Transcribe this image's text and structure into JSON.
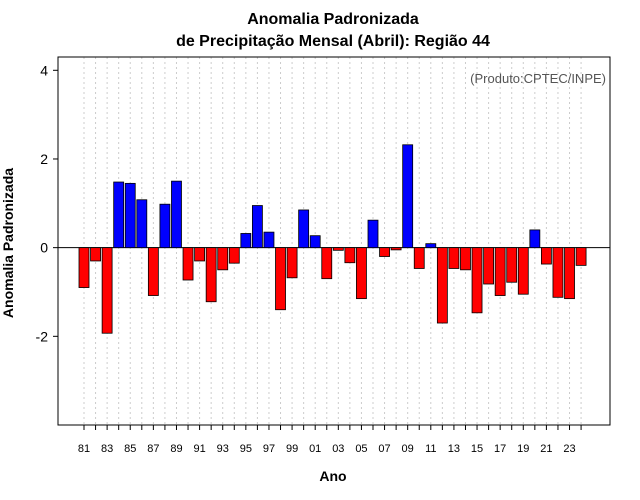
{
  "chart_data": {
    "type": "bar",
    "title_line1": "Anomalia Padronizada",
    "title_line2": "de Precipitação Mensal (Abril): Região 44",
    "xlabel": "Ano",
    "ylabel": "Anomalia Padronizada",
    "credit": "(Produto:CPTEC/INPE)",
    "ylim": [
      -4,
      4.3
    ],
    "yticks": [
      -2,
      0,
      2,
      4
    ],
    "ytick_labels": [
      "-2",
      "0",
      "2",
      "4"
    ],
    "grid": true,
    "years": [
      "81",
      "82",
      "83",
      "84",
      "85",
      "86",
      "87",
      "88",
      "89",
      "90",
      "91",
      "92",
      "93",
      "94",
      "95",
      "96",
      "97",
      "98",
      "99",
      "00",
      "01",
      "02",
      "03",
      "04",
      "05",
      "06",
      "07",
      "08",
      "09",
      "10",
      "11",
      "12",
      "13",
      "14",
      "15",
      "16",
      "17",
      "18",
      "19",
      "20",
      "21",
      "22",
      "23",
      "24"
    ],
    "xtick_labels": [
      "81",
      "83",
      "85",
      "87",
      "89",
      "91",
      "93",
      "95",
      "97",
      "99",
      "01",
      "03",
      "05",
      "07",
      "09",
      "11",
      "13",
      "15",
      "17",
      "19",
      "21",
      "23"
    ],
    "values": [
      -0.9,
      -0.3,
      -1.93,
      1.48,
      1.45,
      1.08,
      -1.08,
      0.98,
      1.5,
      -0.73,
      -0.3,
      -1.22,
      -0.5,
      -0.35,
      0.32,
      0.95,
      0.35,
      -1.4,
      -0.68,
      0.85,
      0.27,
      -0.7,
      -0.06,
      -0.34,
      -1.15,
      0.62,
      -0.2,
      -0.05,
      2.32,
      -0.47,
      0.09,
      -1.7,
      -0.47,
      -0.5,
      -1.47,
      -0.82,
      -1.08,
      -0.78,
      -1.05,
      0.4,
      -0.37,
      -1.12,
      -1.15,
      -0.4
    ],
    "positive_color": "#0000ff",
    "negative_color": "#ff0000",
    "bar_edge_color": "#000000",
    "grid_color": "#cccccc"
  }
}
